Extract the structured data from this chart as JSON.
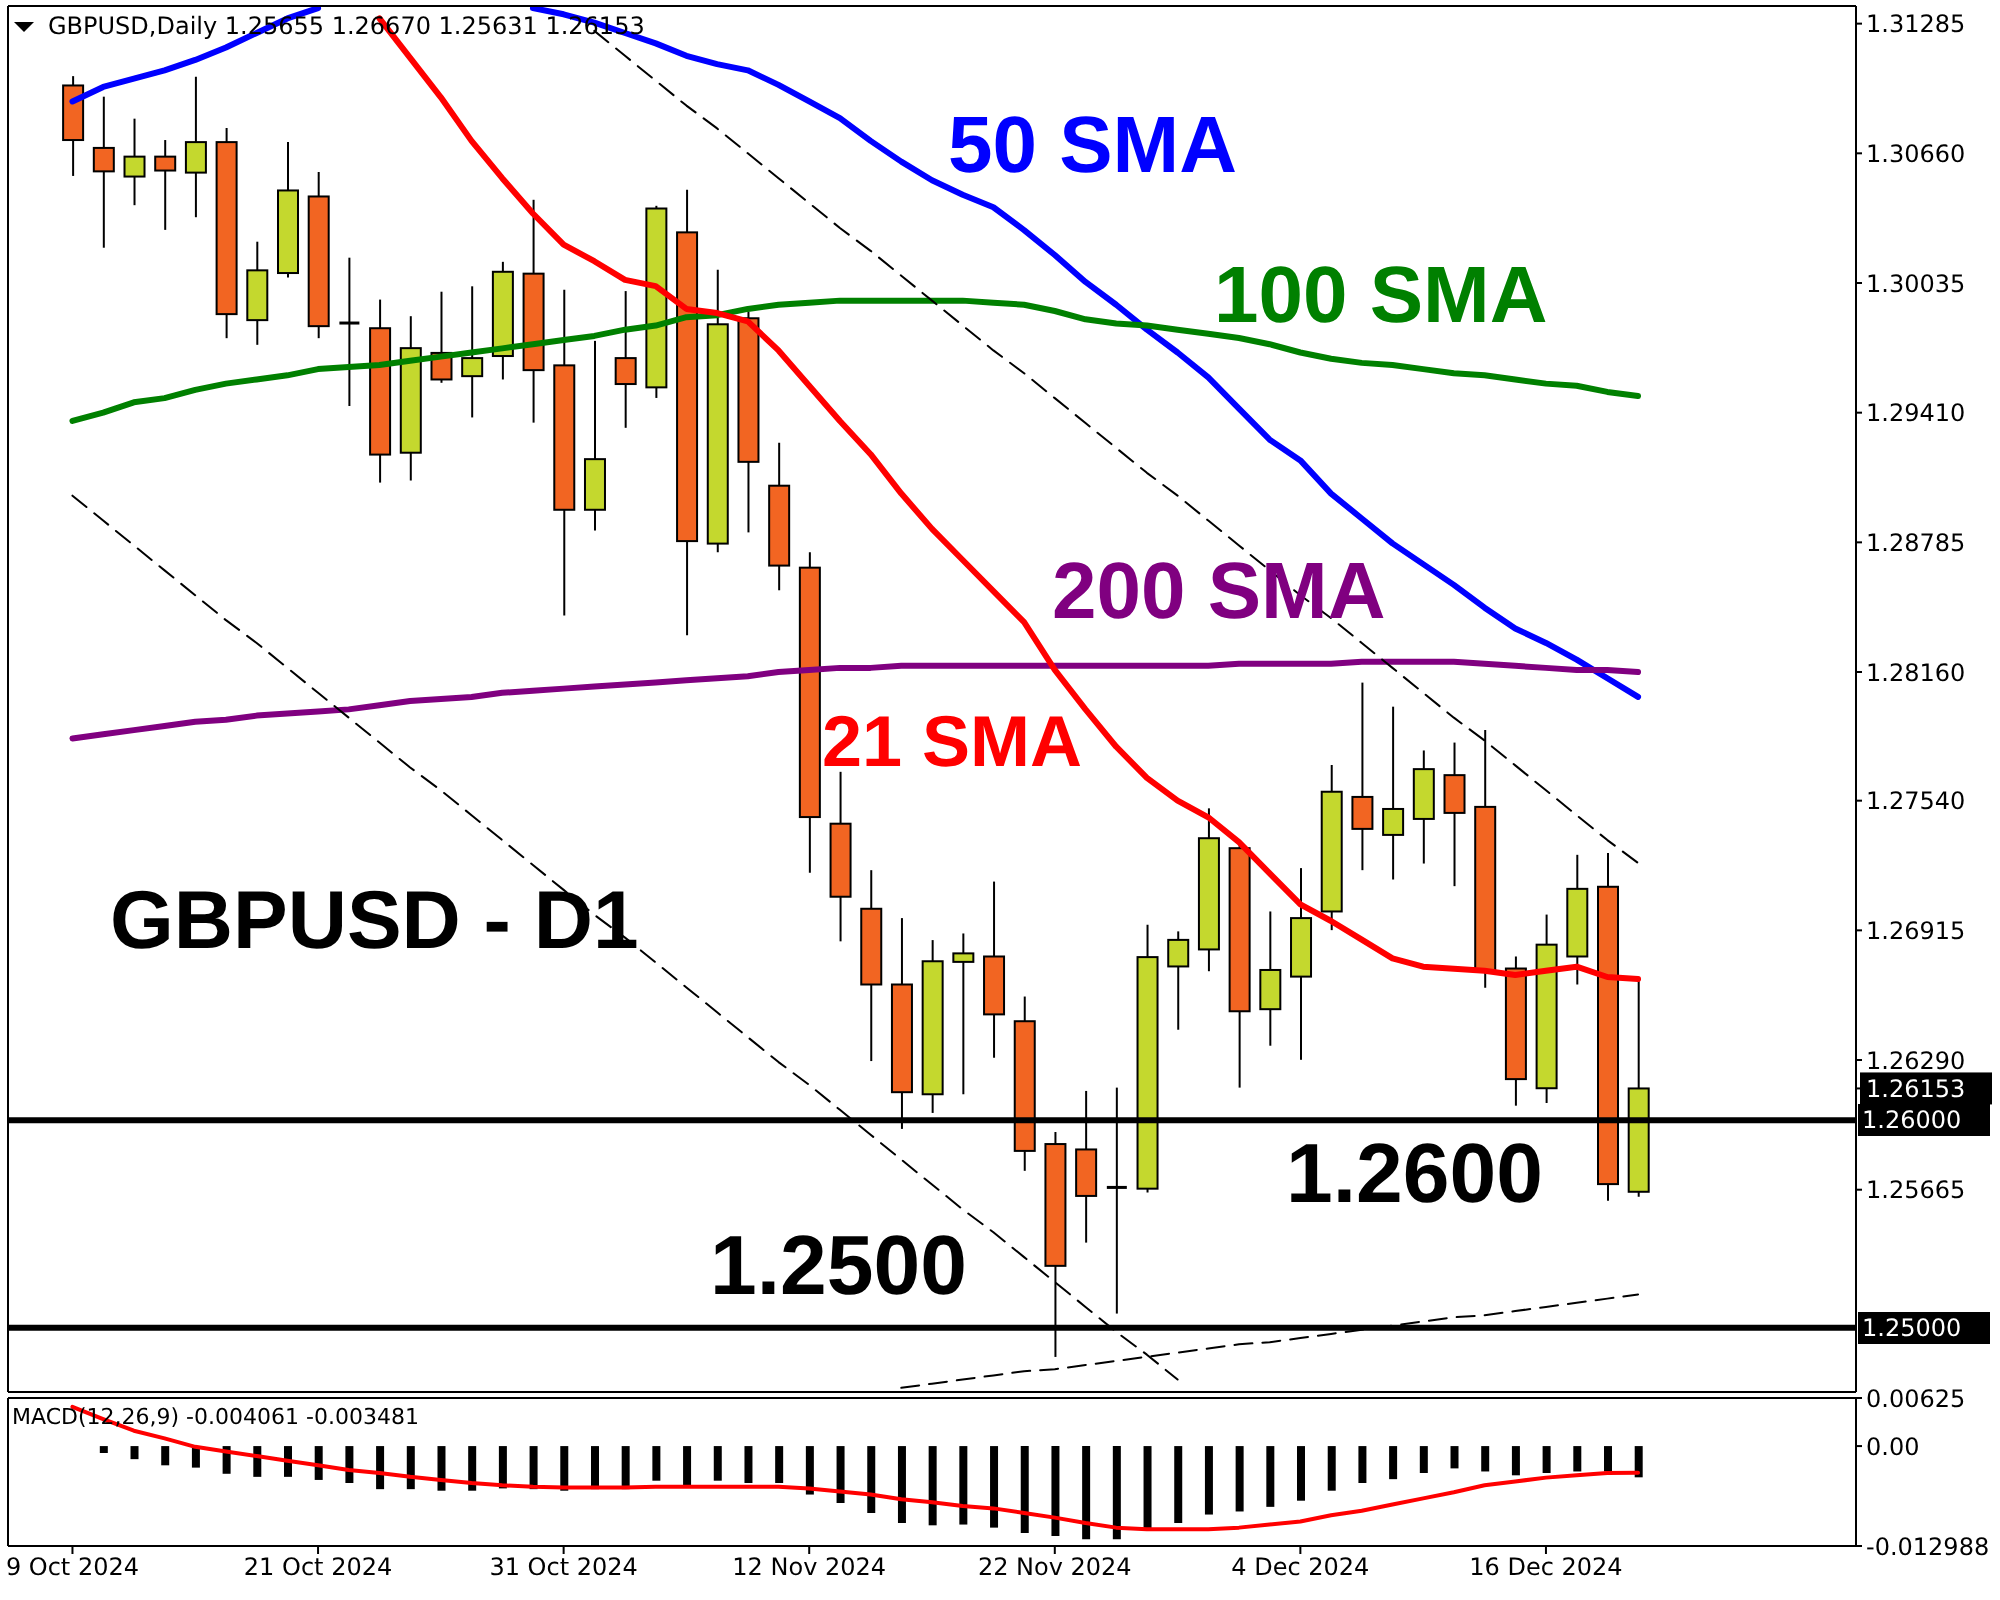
{
  "chart_data": [
    {
      "type": "candlestick",
      "title": "GBPUSD - D1",
      "subtitle": "GBPUSD,Daily 1.25655 1.26670 1.25631 1.26153",
      "categories": [
        null,
        null,
        null,
        null,
        null,
        null,
        null,
        null,
        null,
        null,
        null,
        null,
        null,
        null,
        null,
        null,
        null,
        null,
        null,
        null,
        null,
        null,
        null,
        null,
        null,
        null,
        null,
        null,
        null,
        null,
        null,
        null,
        null,
        null,
        null,
        null,
        null,
        null,
        null,
        null,
        null,
        null,
        null,
        null,
        null,
        null,
        null,
        null,
        null,
        null,
        null,
        null
      ],
      "ohlc": [
        [
          1.30987,
          1.31032,
          1.30551,
          1.30724
        ],
        [
          1.30686,
          1.30933,
          1.30205,
          1.30573
        ],
        [
          1.30548,
          1.30827,
          1.3041,
          1.30644
        ],
        [
          1.30644,
          1.30724,
          1.30291,
          1.30577
        ],
        [
          1.30567,
          1.31029,
          1.30352,
          1.30714
        ],
        [
          1.30714,
          1.30782,
          1.29769,
          1.29885
        ],
        [
          1.29856,
          1.30234,
          1.29737,
          1.30096
        ],
        [
          1.30083,
          1.30714,
          1.30061,
          1.30481
        ],
        [
          1.30452,
          1.3057,
          1.29769,
          1.29827
        ],
        [
          1.29842,
          1.30157,
          1.29442,
          1.29842
        ],
        [
          1.29817,
          1.29955,
          1.29073,
          1.29208
        ],
        [
          1.29217,
          1.29875,
          1.29083,
          1.29721
        ],
        [
          1.29698,
          1.29993,
          1.29554,
          1.2957
        ],
        [
          1.29586,
          1.30019,
          1.29387,
          1.29673
        ],
        [
          1.29683,
          1.30137,
          1.2957,
          1.30089
        ],
        [
          1.3008,
          1.30436,
          1.29362,
          1.29615
        ],
        [
          1.29638,
          1.30003,
          1.28433,
          1.28942
        ],
        [
          1.28942,
          1.29756,
          1.28842,
          1.29186
        ],
        [
          1.29673,
          1.29996,
          1.29337,
          1.29548
        ],
        [
          1.29532,
          1.30407,
          1.29481,
          1.30394
        ],
        [
          1.30279,
          1.30484,
          1.28337,
          1.28791
        ],
        [
          1.28779,
          1.30099,
          1.28737,
          1.29836
        ],
        [
          1.29865,
          1.29897,
          1.28833,
          1.29173
        ],
        [
          1.29058,
          1.29265,
          1.28554,
          1.28673
        ],
        [
          1.28663,
          1.28737,
          1.27192,
          1.27461
        ],
        [
          1.27429,
          1.27679,
          1.26862,
          1.27077
        ],
        [
          1.27019,
          1.27205,
          1.26285,
          1.26654
        ],
        [
          1.26654,
          1.26974,
          1.25958,
          1.26135
        ],
        [
          1.26125,
          1.26868,
          1.26035,
          1.26766
        ],
        [
          1.26763,
          1.269,
          1.26125,
          1.26804
        ],
        [
          1.26789,
          1.2715,
          1.26301,
          1.2651
        ],
        [
          1.26477,
          1.26596,
          1.25756,
          1.25852
        ],
        [
          1.25885,
          1.25943,
          1.24859,
          1.25298
        ],
        [
          1.25859,
          1.26141,
          1.2541,
          1.25635
        ],
        [
          1.25676,
          1.26157,
          1.25068,
          1.25676
        ],
        [
          1.2567,
          1.26942,
          1.25651,
          1.26786
        ],
        [
          1.26741,
          1.2691,
          1.26436,
          1.26869
        ],
        [
          1.26823,
          1.27503,
          1.26718,
          1.27359
        ],
        [
          1.27311,
          1.27343,
          1.26157,
          1.26525
        ],
        [
          1.26535,
          1.27006,
          1.26359,
          1.26724
        ],
        [
          1.26692,
          1.27215,
          1.26291,
          1.26974
        ],
        [
          1.27006,
          1.27712,
          1.26916,
          1.27583
        ],
        [
          1.27558,
          1.28109,
          1.27205,
          1.27404
        ],
        [
          1.27375,
          1.27993,
          1.2716,
          1.275
        ],
        [
          1.27452,
          1.27782,
          1.27237,
          1.27692
        ],
        [
          1.27663,
          1.2782,
          1.27128,
          1.27481
        ],
        [
          1.2751,
          1.27881,
          1.26638,
          1.26718
        ],
        [
          1.26731,
          1.26789,
          1.2607,
          1.26198
        ],
        [
          1.26154,
          1.26991,
          1.26083,
          1.26846
        ],
        [
          1.26789,
          1.27279,
          1.26654,
          1.27115
        ],
        [
          1.27125,
          1.27288,
          1.25612,
          1.25692
        ],
        [
          1.25655,
          1.2667,
          1.25631,
          1.26153
        ]
      ],
      "colors": [
        "#f26522",
        "#f26522",
        "#c4d82e",
        "#f26522",
        "#c4d82e",
        "#f26522",
        "#c4d82e",
        "#c4d82e",
        "#f26522",
        "#000000",
        "#f26522",
        "#c4d82e",
        "#f26522",
        "#c4d82e",
        "#c4d82e",
        "#f26522",
        "#f26522",
        "#c4d82e",
        "#f26522",
        "#c4d82e",
        "#f26522",
        "#c4d82e",
        "#f26522",
        "#f26522",
        "#f26522",
        "#f26522",
        "#f26522",
        "#f26522",
        "#c4d82e",
        "#c4d82e",
        "#f26522",
        "#f26522",
        "#f26522",
        "#f26522",
        "#000000",
        "#c4d82e",
        "#c4d82e",
        "#c4d82e",
        "#f26522",
        "#c4d82e",
        "#c4d82e",
        "#c4d82e",
        "#f26522",
        "#c4d82e",
        "#c4d82e",
        "#f26522",
        "#f26522",
        "#f26522",
        "#c4d82e",
        "#c4d82e",
        "#f26522",
        "#c4d82e"
      ],
      "series": [
        {
          "name": "50 SMA",
          "type": "line",
          "color": "#0000ff",
          "values": [
            1.3091,
            1.3098,
            1.3102,
            1.3106,
            1.3111,
            1.3117,
            1.3124,
            1.3131,
            1.3136,
            null,
            null,
            null,
            null,
            null,
            null,
            1.3136,
            1.3133,
            1.3129,
            1.3124,
            1.3119,
            1.3113,
            1.3109,
            1.3106,
            1.3099,
            1.3091,
            1.3083,
            1.3072,
            1.3062,
            1.3053,
            1.3046,
            1.304,
            1.3029,
            1.3017,
            1.3004,
            1.2993,
            1.2981,
            1.297,
            1.2958,
            1.2943,
            1.2928,
            1.2918,
            1.2902,
            1.289,
            1.2878,
            1.2868,
            1.2858,
            1.2847,
            1.2837,
            1.283,
            1.2822,
            1.2813,
            1.2804
          ]
        },
        {
          "name": "100 SMA",
          "type": "line",
          "color": "#008000",
          "values": [
            1.2937,
            1.2941,
            1.2946,
            1.2948,
            1.2952,
            1.2955,
            1.2957,
            1.2959,
            1.2962,
            1.2963,
            1.2964,
            1.2966,
            1.2968,
            1.297,
            1.2972,
            1.2974,
            1.2976,
            1.2978,
            1.2981,
            1.2983,
            1.2987,
            1.2988,
            1.2991,
            1.2993,
            1.2994,
            1.2995,
            1.2995,
            1.2995,
            1.2995,
            1.2995,
            1.2994,
            1.2993,
            1.299,
            1.2986,
            1.2984,
            1.2983,
            1.2981,
            1.2979,
            1.2977,
            1.2974,
            1.297,
            1.2967,
            1.2965,
            1.2964,
            1.2962,
            1.296,
            1.2959,
            1.2957,
            1.2955,
            1.2954,
            1.2951,
            1.2949
          ]
        },
        {
          "name": "200 SMA",
          "type": "line",
          "color": "#800080",
          "values": [
            1.2784,
            1.2786,
            1.2788,
            1.279,
            1.2792,
            1.2793,
            1.2795,
            1.2796,
            1.2797,
            1.2798,
            1.28,
            1.2802,
            1.2803,
            1.2804,
            1.2806,
            1.2807,
            1.2808,
            1.2809,
            1.281,
            1.2811,
            1.2812,
            1.2813,
            1.2814,
            1.2816,
            1.2817,
            1.2818,
            1.2818,
            1.2819,
            1.2819,
            1.2819,
            1.2819,
            1.2819,
            1.2819,
            1.2819,
            1.2819,
            1.2819,
            1.2819,
            1.2819,
            1.282,
            1.282,
            1.282,
            1.282,
            1.2821,
            1.2821,
            1.2821,
            1.2821,
            1.282,
            1.2819,
            1.2818,
            1.2817,
            1.2817,
            1.2816
          ]
        },
        {
          "name": "21 SMA",
          "type": "line",
          "color": "#ff0000",
          "values": [
            null,
            null,
            null,
            null,
            null,
            null,
            null,
            null,
            null,
            null,
            1.3131,
            1.3112,
            1.3093,
            1.3072,
            1.3054,
            1.3037,
            1.3022,
            1.3014,
            1.3005,
            1.3002,
            1.2991,
            1.2989,
            1.2985,
            1.2971,
            1.2954,
            1.2937,
            1.2921,
            1.2902,
            1.2885,
            1.287,
            1.2855,
            1.284,
            1.2817,
            1.2798,
            1.278,
            1.2765,
            1.2754,
            1.2746,
            1.2734,
            1.2719,
            1.2704,
            1.2696,
            1.2687,
            1.2678,
            1.2674,
            1.2673,
            1.2672,
            1.267,
            1.2672,
            1.2674,
            1.2669,
            1.2668
          ]
        },
        {
          "type": "line",
          "color": "#000000",
          "line_style": "dashed",
          "values": [
            null,
            null,
            null,
            null,
            null,
            null,
            null,
            null,
            null,
            null,
            null,
            null,
            null,
            null,
            null,
            null,
            null,
            1.3125,
            1.3113,
            1.3101,
            1.3089,
            1.3078,
            1.3066,
            1.3054,
            1.3042,
            1.303,
            1.3019,
            1.3007,
            1.2995,
            1.2983,
            1.2971,
            1.296,
            1.2948,
            1.2936,
            1.2924,
            1.2912,
            1.2901,
            1.2889,
            1.2877,
            1.2865,
            1.2853,
            1.2842,
            1.283,
            1.2818,
            1.2806,
            1.2794,
            1.2783,
            1.2771,
            1.2759,
            1.2747,
            1.2735,
            1.2724
          ]
        },
        {
          "type": "line",
          "color": "#000000",
          "line_style": "dashed",
          "values": [
            1.2901,
            1.2889,
            1.2877,
            1.2865,
            1.2853,
            1.2841,
            1.283,
            1.2818,
            1.2806,
            1.2794,
            1.2782,
            1.277,
            1.2759,
            1.2747,
            1.2735,
            1.2723,
            1.2711,
            1.2699,
            1.2688,
            1.2676,
            1.2664,
            1.2652,
            1.264,
            1.2628,
            1.2617,
            1.2605,
            1.2593,
            1.2581,
            1.2569,
            1.2557,
            1.2546,
            1.2534,
            1.2522,
            1.251,
            1.2498,
            1.2487,
            1.2475,
            null,
            null,
            null,
            null,
            null,
            null,
            null,
            null,
            null,
            null,
            null,
            null,
            null,
            null,
            null
          ]
        },
        {
          "type": "line",
          "color": "#000000",
          "line_style": "dashed",
          "values": [
            null,
            null,
            null,
            null,
            null,
            null,
            null,
            null,
            null,
            null,
            null,
            null,
            null,
            null,
            null,
            null,
            null,
            null,
            null,
            null,
            null,
            null,
            null,
            null,
            null,
            null,
            null,
            1.2471,
            1.2473,
            1.2475,
            1.2477,
            1.2479,
            1.248,
            1.2482,
            1.2484,
            1.2486,
            1.2488,
            1.249,
            1.2492,
            1.2493,
            1.2495,
            1.2497,
            1.2499,
            1.2501,
            1.2503,
            1.2505,
            1.2506,
            1.2508,
            1.251,
            1.2512,
            1.2514,
            1.2516
          ]
        }
      ],
      "ylim": [
        1.2469,
        1.3137
      ],
      "yticks": [
        1.31285,
        {
          "value": 1.3066,
          "label": "1.30660"
        },
        1.30035,
        {
          "value": 1.2941,
          "label": "1.29410"
        },
        1.28785,
        {
          "value": 1.2816,
          "label": "1.28160"
        },
        {
          "value": 1.2754,
          "label": "1.27540"
        },
        1.26915,
        {
          "value": 1.2629,
          "label": "1.26290"
        },
        1.26153,
        1.25665
      ],
      "tick_labels": "y",
      "marker": "none",
      "ref_lines": [
        {
          "axis": "y",
          "value": 1.26,
          "label": "1.26000",
          "color": "#000000"
        },
        {
          "axis": "y",
          "value": 1.25,
          "label": "1.25000",
          "color": "#000000"
        }
      ],
      "annotations": [
        "1.2600",
        "1.2500"
      ]
    },
    {
      "type": "bar",
      "title": "MACD(12,26,9) -0.004061 -0.003481",
      "categories": [
        "9 Oct 2024",
        null,
        null,
        null,
        null,
        null,
        null,
        null,
        "21 Oct 2024",
        null,
        null,
        null,
        null,
        null,
        null,
        null,
        "31 Oct 2024",
        null,
        null,
        null,
        null,
        null,
        null,
        null,
        "12 Nov 2024",
        null,
        null,
        null,
        null,
        null,
        null,
        null,
        "22 Nov 2024",
        null,
        null,
        null,
        null,
        null,
        null,
        null,
        "4 Dec 2024",
        null,
        null,
        null,
        null,
        null,
        null,
        null,
        "16 Dec 2024",
        null,
        null,
        null
      ],
      "series": [
        {
          "color": "#000000",
          "values": [
            null,
            -0.0009,
            -0.0017,
            -0.0025,
            -0.0028,
            -0.0036,
            -0.004,
            -0.004,
            -0.0044,
            -0.0048,
            -0.0056,
            -0.0056,
            -0.0058,
            -0.0058,
            -0.0055,
            -0.0056,
            -0.0058,
            -0.0056,
            -0.0056,
            -0.0045,
            -0.0052,
            -0.0045,
            -0.0048,
            -0.0048,
            -0.0063,
            -0.0074,
            -0.0087,
            -0.01,
            -0.0103,
            -0.0102,
            -0.0106,
            -0.0113,
            -0.0117,
            -0.0121,
            -0.0121,
            -0.011,
            -0.01,
            -0.0089,
            -0.0085,
            -0.0079,
            -0.0071,
            -0.0058,
            -0.0048,
            -0.0043,
            -0.0035,
            -0.0029,
            -0.0033,
            -0.0038,
            -0.0035,
            -0.0033,
            -0.0033,
            -0.004061
          ]
        },
        {
          "type": "line",
          "color": "#ff0000",
          "values": [
            0.0051,
            0.0035,
            0.002,
            0.001,
            -0.0001,
            -0.0007,
            -0.0013,
            -0.0019,
            -0.0025,
            -0.0031,
            -0.0035,
            -0.004,
            -0.0044,
            -0.0048,
            -0.0051,
            -0.0053,
            -0.0054,
            -0.0054,
            -0.0054,
            -0.0053,
            -0.0053,
            -0.0053,
            -0.0053,
            -0.0053,
            -0.0055,
            -0.0059,
            -0.0063,
            -0.0069,
            -0.0073,
            -0.0078,
            -0.0081,
            -0.0087,
            -0.0093,
            -0.01,
            -0.0106,
            -0.0108,
            -0.0108,
            -0.0108,
            -0.0106,
            -0.0102,
            -0.0098,
            -0.009,
            -0.0084,
            -0.0076,
            -0.0068,
            -0.006,
            -0.0051,
            -0.0046,
            -0.0041,
            -0.0038,
            -0.0035,
            -0.003481
          ]
        }
      ],
      "ylim": [
        -0.012988,
        0.00625
      ],
      "yticks": [
        0.00625,
        {
          "value": 0,
          "label": "0.00"
        },
        -0.012988
      ],
      "marker": "none"
    }
  ]
}
